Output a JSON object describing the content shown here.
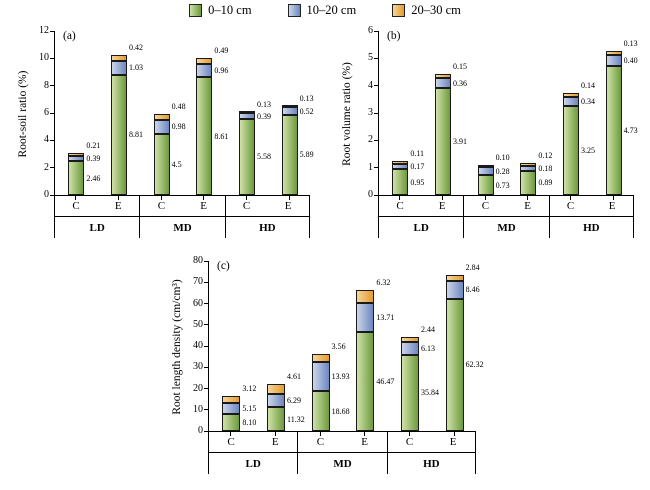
{
  "legend": {
    "items": [
      {
        "label": "0–10 cm",
        "color": "#6f9a3d",
        "color_light": "#cfe2a9"
      },
      {
        "label": "10–20 cm",
        "color": "#6e87bf",
        "color_light": "#ccd6ea"
      },
      {
        "label": "20–30 cm",
        "color": "#e49b2e",
        "color_light": "#f5d79e"
      }
    ]
  },
  "chart_data": [
    {
      "type": "bar",
      "stacked": true,
      "panel": "(a)",
      "ylabel": "Root-soil ratio (%)",
      "ylim": [
        0,
        12
      ],
      "ytick_step": 2,
      "grid": false,
      "legend_position": "top-center",
      "groups": [
        "LD",
        "MD",
        "HD"
      ],
      "conditions": [
        "C",
        "E"
      ],
      "series": [
        {
          "name": "0–10 cm",
          "values": [
            "2.46",
            "8.81",
            "4.5",
            "8.61",
            "5.58",
            "5.89"
          ]
        },
        {
          "name": "10–20 cm",
          "values": [
            "0.39",
            "1.03",
            "0.98",
            "0.96",
            "0.39",
            "0.52"
          ]
        },
        {
          "name": "20–30 cm",
          "values": [
            "0.21",
            "0.42",
            "0.48",
            "0.49",
            "0.13",
            "0.13"
          ]
        }
      ]
    },
    {
      "type": "bar",
      "stacked": true,
      "panel": "(b)",
      "ylabel": "Root volume ratio (%)",
      "ylim": [
        0,
        6
      ],
      "ytick_step": 1,
      "grid": false,
      "legend_position": "top-center",
      "groups": [
        "LD",
        "MD",
        "HD"
      ],
      "conditions": [
        "C",
        "E"
      ],
      "series": [
        {
          "name": "0–10 cm",
          "values": [
            "0.95",
            "3.91",
            "0.73",
            "0.89",
            "3.25",
            "4.73"
          ]
        },
        {
          "name": "10–20 cm",
          "values": [
            "0.17",
            "0.36",
            "0.28",
            "0.18",
            "0.34",
            "0.40"
          ]
        },
        {
          "name": "20–30 cm",
          "values": [
            "0.11",
            "0.15",
            "0.10",
            "0.12",
            "0.14",
            "0.13"
          ]
        }
      ]
    },
    {
      "type": "bar",
      "stacked": true,
      "panel": "(c)",
      "ylabel": "Root length density (cm/cm³)",
      "ylim": [
        0,
        80
      ],
      "ytick_step": 10,
      "grid": false,
      "legend_position": "top-center",
      "groups": [
        "LD",
        "MD",
        "HD"
      ],
      "conditions": [
        "C",
        "E"
      ],
      "series": [
        {
          "name": "0–10 cm",
          "values": [
            "8.10",
            "11.32",
            "18.68",
            "46.47",
            "35.84",
            "62.32"
          ]
        },
        {
          "name": "10–20 cm",
          "values": [
            "5.15",
            "6.29",
            "13.93",
            "13.71",
            "6.13",
            "8.46"
          ]
        },
        {
          "name": "20–30 cm",
          "values": [
            "3.12",
            "4.61",
            "3.56",
            "6.32",
            "2.44",
            "2.84"
          ]
        }
      ]
    }
  ]
}
